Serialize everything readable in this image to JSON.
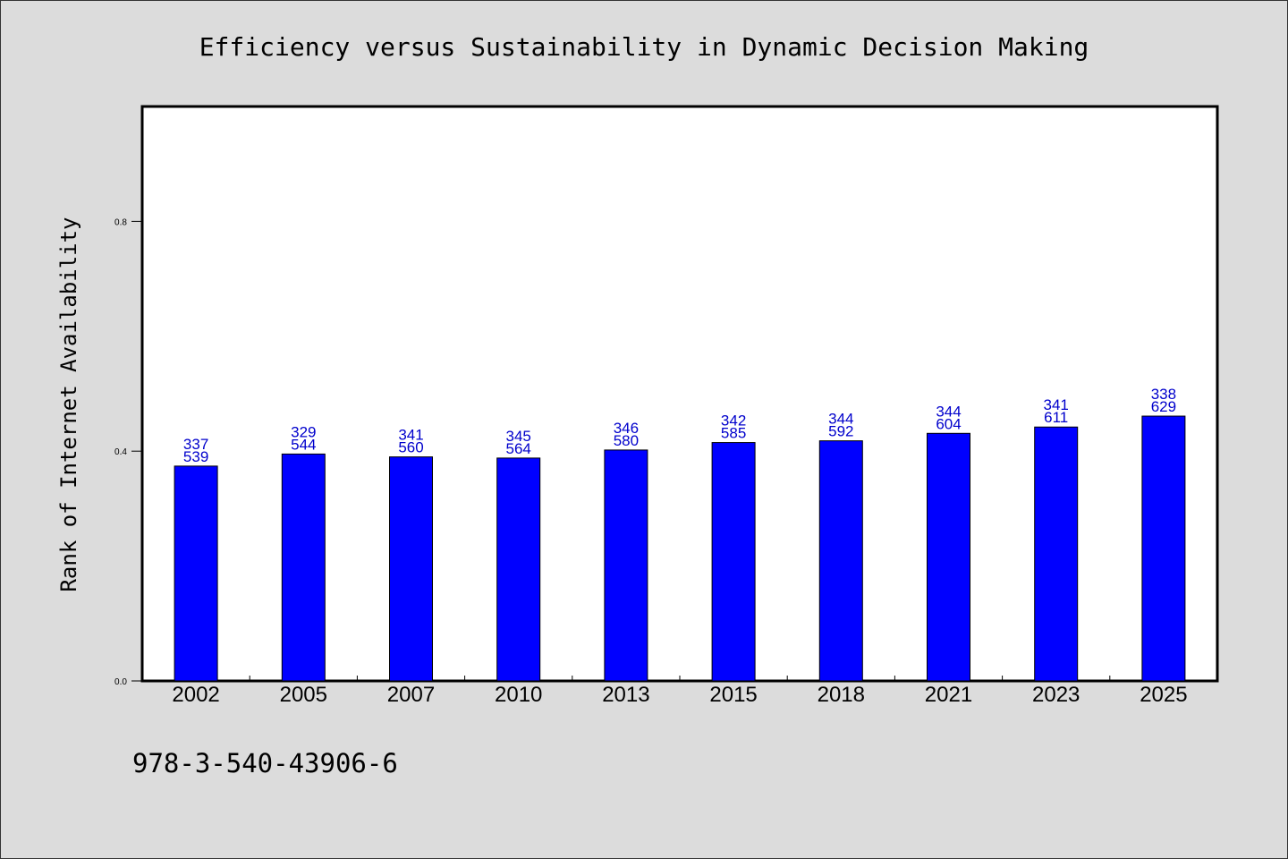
{
  "chart_data": {
    "type": "bar",
    "title": "Efficiency versus Sustainability in Dynamic Decision Making",
    "xlabel": "",
    "ylabel": "Rank of Internet Availability",
    "categories": [
      "2002",
      "2005",
      "2007",
      "2010",
      "2013",
      "2015",
      "2018",
      "2021",
      "2023",
      "2025"
    ],
    "values": [
      0.374,
      0.395,
      0.39,
      0.388,
      0.402,
      0.415,
      0.418,
      0.431,
      0.442,
      0.461
    ],
    "data_labels_top": [
      "337",
      "329",
      "341",
      "345",
      "346",
      "342",
      "344",
      "344",
      "341",
      "338"
    ],
    "data_labels_bottom": [
      "539",
      "544",
      "560",
      "564",
      "580",
      "585",
      "592",
      "604",
      "611",
      "629"
    ],
    "ylim": [
      0,
      1.0
    ],
    "yticks": [
      0.0,
      0.4,
      0.8
    ],
    "ytick_labels": [
      "0.0",
      "0.4",
      "0.8"
    ],
    "bar_color": "#0000ff",
    "label_color": "#0000cc",
    "grid": false
  },
  "footer": {
    "isbn": "978-3-540-43906-6"
  },
  "colors": {
    "background": "#dcdcdc",
    "plot_background": "#ffffff"
  }
}
